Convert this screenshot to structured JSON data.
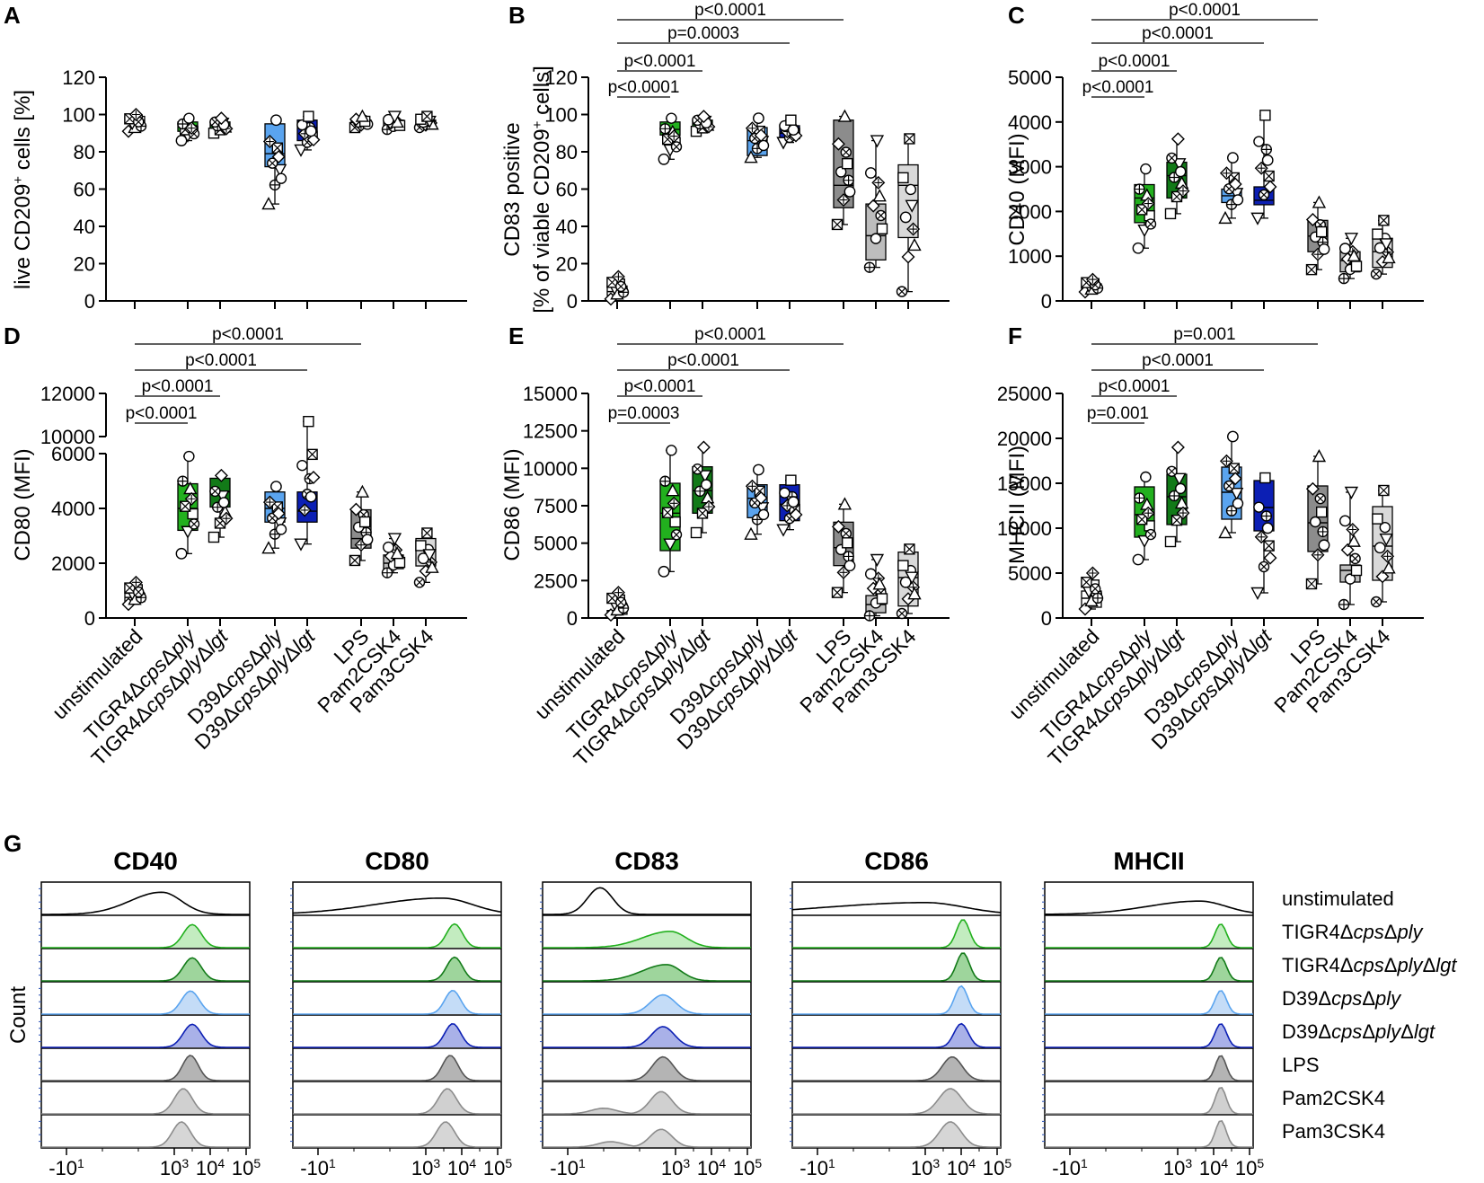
{
  "figure": {
    "categories": [
      "unstimulated",
      "TIGR4ΔcpsΔply",
      "TIGR4ΔcpsΔplyΔlgt",
      "D39ΔcpsΔply",
      "D39ΔcpsΔplyΔlgt",
      "LPS",
      "Pam2CSK4",
      "Pam3CSK4"
    ],
    "category_parts": [
      [
        {
          "t": "unstimulated",
          "i": false
        }
      ],
      [
        {
          "t": "TIGR4Δ",
          "i": false
        },
        {
          "t": "cps",
          "i": true
        },
        {
          "t": "Δ",
          "i": false
        },
        {
          "t": "ply",
          "i": true
        }
      ],
      [
        {
          "t": "TIGR4Δ",
          "i": false
        },
        {
          "t": "cps",
          "i": true
        },
        {
          "t": "Δ",
          "i": false
        },
        {
          "t": "ply",
          "i": true
        },
        {
          "t": "Δ",
          "i": false
        },
        {
          "t": "lgt",
          "i": true
        }
      ],
      [
        {
          "t": "D39Δ",
          "i": false
        },
        {
          "t": "cps",
          "i": true
        },
        {
          "t": "Δ",
          "i": false
        },
        {
          "t": "ply",
          "i": true
        }
      ],
      [
        {
          "t": "D39Δ",
          "i": false
        },
        {
          "t": "cps",
          "i": true
        },
        {
          "t": "Δ",
          "i": false
        },
        {
          "t": "ply",
          "i": true
        },
        {
          "t": "Δ",
          "i": false
        },
        {
          "t": "lgt",
          "i": true
        }
      ],
      [
        {
          "t": "LPS",
          "i": false
        }
      ],
      [
        {
          "t": "Pam2CSK4",
          "i": false
        }
      ],
      [
        {
          "t": "Pam3CSK4",
          "i": false
        }
      ]
    ],
    "colors": [
      "#ffffff",
      "#22b01e",
      "#127a18",
      "#5aa4ef",
      "#0c1fb4",
      "#8c8c8c",
      "#bdbdbd",
      "#d9d9d9"
    ]
  },
  "chart_data": [
    {
      "panel": "A",
      "type": "box",
      "ylabel_parts": [
        "live CD209",
        "+",
        " cells [%]"
      ],
      "ylim": [
        0,
        120
      ],
      "yticks": [
        "0",
        "20",
        "40",
        "60",
        "80",
        "100",
        "120"
      ],
      "boxes": [
        {
          "min": 91,
          "q1": 95,
          "median": 97,
          "q3": 99,
          "max": 100
        },
        {
          "min": 86,
          "q1": 91,
          "median": 94,
          "q3": 96,
          "max": 98
        },
        {
          "min": 90,
          "q1": 92,
          "median": 94,
          "q3": 96,
          "max": 98
        },
        {
          "min": 52,
          "q1": 72,
          "median": 79,
          "q3": 95,
          "max": 97
        },
        {
          "min": 81,
          "q1": 86,
          "median": 93,
          "q3": 97,
          "max": 99
        },
        {
          "min": 93,
          "q1": 94,
          "median": 96,
          "q3": 97,
          "max": 99
        },
        {
          "min": 92,
          "q1": 94,
          "median": 96,
          "q3": 97,
          "max": 99
        },
        {
          "min": 93,
          "q1": 94,
          "median": 96,
          "q3": 97,
          "max": 99
        }
      ],
      "comparisons": []
    },
    {
      "panel": "B",
      "type": "box",
      "ylabel_parts": [
        "CD83 positive"
      ],
      "ylabel2_parts": [
        "[% of viable CD209",
        "+",
        " cells]"
      ],
      "ylim": [
        0,
        120
      ],
      "yticks": [
        "0",
        "20",
        "40",
        "60",
        "80",
        "100",
        "120"
      ],
      "boxes": [
        {
          "min": 1,
          "q1": 3,
          "median": 5,
          "q3": 8,
          "max": 13
        },
        {
          "min": 76,
          "q1": 89,
          "median": 92,
          "q3": 96,
          "max": 98
        },
        {
          "min": 91,
          "q1": 93,
          "median": 95,
          "q3": 97,
          "max": 99
        },
        {
          "min": 77,
          "q1": 78,
          "median": 86,
          "q3": 93,
          "max": 98
        },
        {
          "min": 85,
          "q1": 87,
          "median": 90,
          "q3": 94,
          "max": 97
        },
        {
          "min": 41,
          "q1": 50,
          "median": 62,
          "q3": 97,
          "max": 99
        },
        {
          "min": 18,
          "q1": 22,
          "median": 35,
          "q3": 52,
          "max": 86
        },
        {
          "min": 5,
          "q1": 34,
          "median": 62,
          "q3": 73,
          "max": 87
        }
      ],
      "comparisons": [
        {
          "from": 0,
          "to": 1,
          "label": "p<0.0001"
        },
        {
          "from": 0,
          "to": 2,
          "label": "p<0.0001"
        },
        {
          "from": 0,
          "to": 4,
          "label": "p=0.0003"
        },
        {
          "from": 0,
          "to": 5,
          "label": "p<0.0001"
        }
      ]
    },
    {
      "panel": "C",
      "type": "box",
      "ylabel_parts": [
        "CD40 (MFI)"
      ],
      "ylim": [
        0,
        5000
      ],
      "yticks": [
        "0",
        "1000",
        "2000",
        "3000",
        "4000",
        "5000"
      ],
      "boxes": [
        {
          "min": 200,
          "q1": 250,
          "median": 320,
          "q3": 380,
          "max": 480
        },
        {
          "min": 1180,
          "q1": 1750,
          "median": 2300,
          "q3": 2600,
          "max": 2950
        },
        {
          "min": 1950,
          "q1": 2300,
          "median": 2800,
          "q3": 3100,
          "max": 3620
        },
        {
          "min": 1850,
          "q1": 2200,
          "median": 2350,
          "q3": 2500,
          "max": 3200
        },
        {
          "min": 1850,
          "q1": 2150,
          "median": 2250,
          "q3": 2550,
          "max": 4150
        },
        {
          "min": 700,
          "q1": 1100,
          "median": 1450,
          "q3": 1800,
          "max": 2200
        },
        {
          "min": 500,
          "q1": 650,
          "median": 900,
          "q3": 1100,
          "max": 1400
        },
        {
          "min": 600,
          "q1": 750,
          "median": 1100,
          "q3": 1400,
          "max": 1800
        }
      ],
      "comparisons": [
        {
          "from": 0,
          "to": 1,
          "label": "p<0.0001"
        },
        {
          "from": 0,
          "to": 2,
          "label": "p<0.0001"
        },
        {
          "from": 0,
          "to": 4,
          "label": "p<0.0001"
        },
        {
          "from": 0,
          "to": 5,
          "label": "p<0.0001"
        }
      ]
    },
    {
      "panel": "D",
      "type": "box",
      "broken_axis": true,
      "ylabel_parts": [
        "CD80 (MFI)"
      ],
      "ylim": [
        0,
        12000
      ],
      "yticks": [
        "0",
        "2000",
        "4000",
        "6000",
        "10000",
        "12000"
      ],
      "boxes": [
        {
          "min": 500,
          "q1": 600,
          "median": 750,
          "q3": 900,
          "max": 1300
        },
        {
          "min": 2350,
          "q1": 3200,
          "median": 4000,
          "q3": 4900,
          "max": 5900
        },
        {
          "min": 2950,
          "q1": 4050,
          "median": 4600,
          "q3": 5100,
          "max": 5200
        },
        {
          "min": 2550,
          "q1": 3500,
          "median": 4000,
          "q3": 4600,
          "max": 4800
        },
        {
          "min": 2700,
          "q1": 3500,
          "median": 3900,
          "q3": 4600,
          "max": 10700
        },
        {
          "min": 2100,
          "q1": 2550,
          "median": 2900,
          "q3": 3950,
          "max": 4600
        },
        {
          "min": 1650,
          "q1": 1800,
          "median": 2000,
          "q3": 2300,
          "max": 2900
        },
        {
          "min": 1300,
          "q1": 1900,
          "median": 2500,
          "q3": 2900,
          "max": 3100
        }
      ],
      "comparisons": [
        {
          "from": 0,
          "to": 1,
          "label": "p<0.0001"
        },
        {
          "from": 0,
          "to": 2,
          "label": "p<0.0001"
        },
        {
          "from": 0,
          "to": 4,
          "label": "p<0.0001"
        },
        {
          "from": 0,
          "to": 5,
          "label": "p<0.0001"
        }
      ]
    },
    {
      "panel": "E",
      "type": "box",
      "ylabel_parts": [
        "CD86 (MFI)"
      ],
      "ylim": [
        0,
        15000
      ],
      "yticks": [
        "0",
        "2500",
        "5000",
        "7500",
        "10000",
        "12500",
        "15000"
      ],
      "boxes": [
        {
          "min": 200,
          "q1": 250,
          "median": 380,
          "q3": 500,
          "max": 1700
        },
        {
          "min": 3100,
          "q1": 4500,
          "median": 7000,
          "q3": 9000,
          "max": 11200
        },
        {
          "min": 5700,
          "q1": 7000,
          "median": 8500,
          "q3": 10100,
          "max": 11400
        },
        {
          "min": 5600,
          "q1": 6700,
          "median": 8000,
          "q3": 8900,
          "max": 9900
        },
        {
          "min": 5900,
          "q1": 6500,
          "median": 7600,
          "q3": 8900,
          "max": 9200
        },
        {
          "min": 1700,
          "q1": 3500,
          "median": 4700,
          "q3": 6400,
          "max": 7600
        },
        {
          "min": 150,
          "q1": 350,
          "median": 900,
          "q3": 1500,
          "max": 3900
        },
        {
          "min": 300,
          "q1": 800,
          "median": 2700,
          "q3": 4400,
          "max": 4600
        }
      ],
      "comparisons": [
        {
          "from": 0,
          "to": 1,
          "label": "p=0.0003"
        },
        {
          "from": 0,
          "to": 2,
          "label": "p<0.0001"
        },
        {
          "from": 0,
          "to": 4,
          "label": "p<0.0001"
        },
        {
          "from": 0,
          "to": 5,
          "label": "p<0.0001"
        }
      ]
    },
    {
      "panel": "F",
      "type": "box",
      "ylabel_parts": [
        "MHCII (MFI)"
      ],
      "ylim": [
        0,
        25000
      ],
      "yticks": [
        "0",
        "5000",
        "10000",
        "15000",
        "20000",
        "25000"
      ],
      "boxes": [
        {
          "min": 1000,
          "q1": 1200,
          "median": 2200,
          "q3": 3000,
          "max": 5000
        },
        {
          "min": 6500,
          "q1": 9000,
          "median": 11500,
          "q3": 14600,
          "max": 15700
        },
        {
          "min": 8500,
          "q1": 10400,
          "median": 13500,
          "q3": 16000,
          "max": 19000
        },
        {
          "min": 9500,
          "q1": 11000,
          "median": 14000,
          "q3": 16800,
          "max": 20200
        },
        {
          "min": 2800,
          "q1": 9700,
          "median": 12300,
          "q3": 15300,
          "max": 15600
        },
        {
          "min": 3800,
          "q1": 7400,
          "median": 10600,
          "q3": 14700,
          "max": 18000
        },
        {
          "min": 1500,
          "q1": 4000,
          "median": 5300,
          "q3": 5900,
          "max": 14000
        },
        {
          "min": 1800,
          "q1": 4200,
          "median": 8000,
          "q3": 12400,
          "max": 14200
        }
      ],
      "comparisons": [
        {
          "from": 0,
          "to": 1,
          "label": "p=0.001"
        },
        {
          "from": 0,
          "to": 2,
          "label": "p<0.0001"
        },
        {
          "from": 0,
          "to": 4,
          "label": "p<0.0001"
        },
        {
          "from": 0,
          "to": 5,
          "label": "p=0.001"
        }
      ]
    }
  ],
  "histograms": {
    "panel": "G",
    "type": "histogram",
    "ylabel": "Count",
    "xticks": [
      {
        "base": "-10",
        "exp": "1"
      },
      {
        "base": "10",
        "exp": "3"
      },
      {
        "base": "10",
        "exp": "4"
      },
      {
        "base": "10",
        "exp": "5"
      }
    ],
    "row_labels": [
      [
        {
          "t": "unstimulated",
          "i": false
        }
      ],
      [
        {
          "t": "TIGR4Δ",
          "i": false
        },
        {
          "t": "cps",
          "i": true
        },
        {
          "t": "Δ",
          "i": false
        },
        {
          "t": "ply",
          "i": true
        }
      ],
      [
        {
          "t": "TIGR4Δ",
          "i": false
        },
        {
          "t": "cps",
          "i": true
        },
        {
          "t": "Δ",
          "i": false
        },
        {
          "t": "ply",
          "i": true
        },
        {
          "t": "Δ",
          "i": false
        },
        {
          "t": "lgt",
          "i": true
        }
      ],
      [
        {
          "t": "D39Δ",
          "i": false
        },
        {
          "t": "cps",
          "i": true
        },
        {
          "t": "Δ",
          "i": false
        },
        {
          "t": "ply",
          "i": true
        }
      ],
      [
        {
          "t": "D39Δ",
          "i": false
        },
        {
          "t": "cps",
          "i": true
        },
        {
          "t": "Δ",
          "i": false
        },
        {
          "t": "ply",
          "i": true
        },
        {
          "t": "Δ",
          "i": false
        },
        {
          "t": "lgt",
          "i": true
        }
      ],
      [
        {
          "t": "LPS",
          "i": false
        }
      ],
      [
        {
          "t": "Pam2CSK4",
          "i": false
        }
      ],
      [
        {
          "t": "Pam3CSK4",
          "i": false
        }
      ]
    ],
    "row_colors": [
      "none",
      "#22b01e",
      "#127a18",
      "#5aa4ef",
      "#0c1fb4",
      "#555555",
      "#8c8c8c",
      "#8c8c8c"
    ],
    "row_fills": [
      "none",
      "#c3ecc0",
      "#9ed59c",
      "#c4dcf7",
      "#a9b1e8",
      "#b4b4b4",
      "#d0d0d0",
      "#d6d6d6"
    ],
    "markers": [
      {
        "title": "CD40",
        "peaks": [
          {
            "center": 2.65,
            "width": 0.55,
            "heights": 0.75,
            "skew": -0.6
          },
          {
            "center": 3.5,
            "width": 0.25,
            "heights": 0.78
          },
          {
            "center": 3.5,
            "width": 0.25,
            "heights": 0.78
          },
          {
            "center": 3.45,
            "width": 0.25,
            "heights": 0.78
          },
          {
            "center": 3.5,
            "width": 0.25,
            "heights": 0.78
          },
          {
            "center": 3.45,
            "width": 0.22,
            "heights": 0.85
          },
          {
            "center": 3.25,
            "width": 0.25,
            "heights": 0.85
          },
          {
            "center": 3.2,
            "width": 0.25,
            "heights": 0.85
          }
        ]
      },
      {
        "title": "CD80",
        "peaks": [
          {
            "center": 3.45,
            "width": 0.85,
            "heights": 0.55,
            "skew": -1.2
          },
          {
            "center": 3.8,
            "width": 0.22,
            "heights": 0.8
          },
          {
            "center": 3.8,
            "width": 0.22,
            "heights": 0.8
          },
          {
            "center": 3.75,
            "width": 0.22,
            "heights": 0.8
          },
          {
            "center": 3.75,
            "width": 0.22,
            "heights": 0.8
          },
          {
            "center": 3.68,
            "width": 0.22,
            "heights": 0.85
          },
          {
            "center": 3.6,
            "width": 0.25,
            "heights": 0.85
          },
          {
            "center": 3.55,
            "width": 0.25,
            "heights": 0.85
          }
        ]
      },
      {
        "title": "CD83",
        "peaks": [
          {
            "center": 0.9,
            "width": 0.35,
            "heights": 0.9
          },
          {
            "center": 2.85,
            "width": 0.45,
            "heights": 0.55,
            "skew": -0.7
          },
          {
            "center": 2.75,
            "width": 0.4,
            "heights": 0.55,
            "skew": -0.7
          },
          {
            "center": 2.65,
            "width": 0.35,
            "heights": 0.65
          },
          {
            "center": 2.65,
            "width": 0.32,
            "heights": 0.7
          },
          {
            "center": 2.65,
            "width": 0.3,
            "heights": 0.8
          },
          {
            "center": 2.6,
            "width": 0.3,
            "heights": 0.75,
            "second": {
              "center": 1.0,
              "height": 0.25
            }
          },
          {
            "center": 2.6,
            "width": 0.3,
            "heights": 0.6,
            "second": {
              "center": 1.2,
              "height": 0.3
            }
          }
        ]
      },
      {
        "title": "CD86",
        "peaks": [
          {
            "center": 3.0,
            "width": 1.1,
            "heights": 0.4,
            "skew": -1.5
          },
          {
            "center": 4.05,
            "width": 0.18,
            "heights": 0.95
          },
          {
            "center": 4.05,
            "width": 0.18,
            "heights": 0.95
          },
          {
            "center": 4.0,
            "width": 0.18,
            "heights": 0.95
          },
          {
            "center": 4.0,
            "width": 0.2,
            "heights": 0.8
          },
          {
            "center": 3.75,
            "width": 0.28,
            "heights": 0.8
          },
          {
            "center": 3.7,
            "width": 0.32,
            "heights": 0.85
          },
          {
            "center": 3.7,
            "width": 0.3,
            "heights": 0.85
          }
        ]
      },
      {
        "title": "MHCII",
        "peaks": [
          {
            "center": 3.6,
            "width": 0.75,
            "heights": 0.45,
            "skew": -0.9
          },
          {
            "center": 4.2,
            "width": 0.16,
            "heights": 0.8
          },
          {
            "center": 4.2,
            "width": 0.16,
            "heights": 0.8
          },
          {
            "center": 4.2,
            "width": 0.16,
            "heights": 0.8
          },
          {
            "center": 4.2,
            "width": 0.16,
            "heights": 0.8
          },
          {
            "center": 4.2,
            "width": 0.15,
            "heights": 0.85
          },
          {
            "center": 4.2,
            "width": 0.15,
            "heights": 0.9
          },
          {
            "center": 4.2,
            "width": 0.15,
            "heights": 0.9
          }
        ]
      }
    ]
  }
}
